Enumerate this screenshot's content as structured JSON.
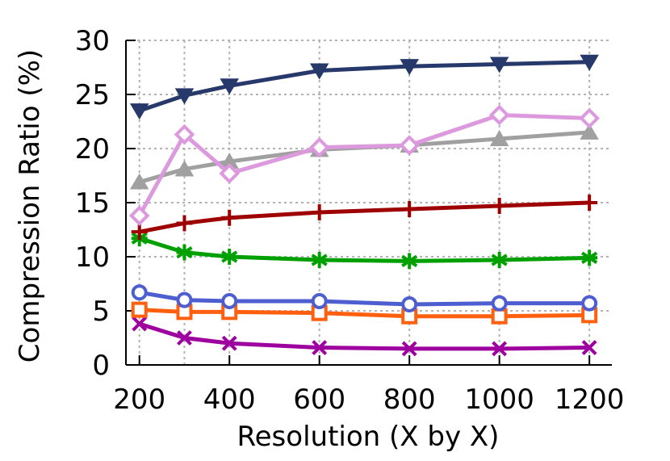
{
  "chart_data": {
    "type": "line",
    "xlabel": "Resolution (X by X)",
    "ylabel": "Compression Ratio (%)",
    "x": [
      200,
      300,
      400,
      600,
      800,
      1000,
      1200
    ],
    "xticks": [
      200,
      400,
      600,
      800,
      1000,
      1200
    ],
    "xlim": [
      170,
      1250
    ],
    "ylim": [
      0,
      30
    ],
    "yticks": [
      0,
      5,
      10,
      15,
      20,
      25,
      30
    ],
    "grid": true,
    "series": [
      {
        "marker": "triangle-down",
        "color": "#27386b",
        "values": [
          23.5,
          24.9,
          25.8,
          27.2,
          27.6,
          27.8,
          28.0
        ]
      },
      {
        "marker": "diamond",
        "color": "#dd99dd",
        "values": [
          13.8,
          21.3,
          17.7,
          20.1,
          20.3,
          23.1,
          22.8
        ]
      },
      {
        "marker": "triangle-up",
        "color": "#a0a0a0",
        "values": [
          16.9,
          18.1,
          18.8,
          19.9,
          20.3,
          20.9,
          21.5
        ]
      },
      {
        "marker": "plus",
        "color": "#9e0000",
        "values": [
          12.3,
          13.1,
          13.6,
          14.1,
          14.4,
          14.7,
          15.0
        ]
      },
      {
        "marker": "asterisk",
        "color": "#00a000",
        "values": [
          11.7,
          10.4,
          10.0,
          9.7,
          9.6,
          9.7,
          9.9
        ]
      },
      {
        "marker": "circle",
        "color": "#4d5ed0",
        "values": [
          6.7,
          6.0,
          5.9,
          5.9,
          5.6,
          5.7,
          5.7
        ]
      },
      {
        "marker": "square",
        "color": "#ff6010",
        "values": [
          5.1,
          4.9,
          4.9,
          4.8,
          4.5,
          4.5,
          4.6
        ]
      },
      {
        "marker": "x",
        "color": "#9e00a0",
        "values": [
          3.8,
          2.5,
          2.0,
          1.6,
          1.5,
          1.5,
          1.6
        ]
      }
    ]
  }
}
